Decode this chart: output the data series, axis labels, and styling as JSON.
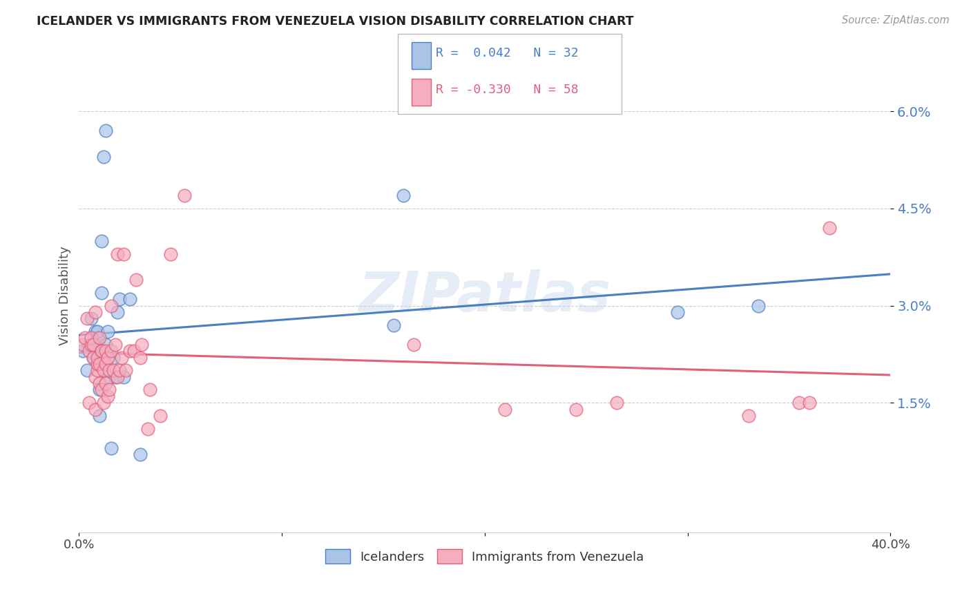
{
  "title": "ICELANDER VS IMMIGRANTS FROM VENEZUELA VISION DISABILITY CORRELATION CHART",
  "source": "Source: ZipAtlas.com",
  "ylabel": "Vision Disability",
  "yticks": [
    0.015,
    0.03,
    0.045,
    0.06
  ],
  "ytick_labels": [
    "1.5%",
    "3.0%",
    "4.5%",
    "6.0%"
  ],
  "xlim": [
    0.0,
    0.4
  ],
  "ylim": [
    -0.005,
    0.068
  ],
  "watermark": "ZIPatlas",
  "legend_r1": "R =  0.042",
  "legend_n1": "N = 32",
  "legend_r2": "R = -0.330",
  "legend_n2": "N = 58",
  "color_blue": "#aac4e8",
  "color_pink": "#f5adc0",
  "line_color_blue": "#4a7fc1",
  "line_color_pink": "#e0607a",
  "icelanders_x": [
    0.002,
    0.004,
    0.005,
    0.006,
    0.007,
    0.007,
    0.008,
    0.008,
    0.009,
    0.009,
    0.01,
    0.01,
    0.01,
    0.011,
    0.011,
    0.012,
    0.013,
    0.013,
    0.014,
    0.015,
    0.016,
    0.017,
    0.018,
    0.019,
    0.02,
    0.022,
    0.025,
    0.03,
    0.155,
    0.16,
    0.295,
    0.335
  ],
  "icelanders_y": [
    0.023,
    0.02,
    0.024,
    0.028,
    0.022,
    0.024,
    0.026,
    0.024,
    0.025,
    0.026,
    0.013,
    0.017,
    0.023,
    0.032,
    0.04,
    0.053,
    0.057,
    0.024,
    0.026,
    0.019,
    0.008,
    0.022,
    0.019,
    0.029,
    0.031,
    0.019,
    0.031,
    0.007,
    0.027,
    0.047,
    0.029,
    0.03
  ],
  "venezuela_x": [
    0.002,
    0.003,
    0.004,
    0.005,
    0.005,
    0.006,
    0.006,
    0.007,
    0.007,
    0.008,
    0.008,
    0.008,
    0.009,
    0.009,
    0.009,
    0.01,
    0.01,
    0.01,
    0.011,
    0.011,
    0.011,
    0.012,
    0.012,
    0.013,
    0.013,
    0.013,
    0.014,
    0.014,
    0.015,
    0.015,
    0.016,
    0.016,
    0.017,
    0.018,
    0.019,
    0.019,
    0.02,
    0.021,
    0.022,
    0.023,
    0.025,
    0.027,
    0.028,
    0.03,
    0.031,
    0.034,
    0.035,
    0.04,
    0.045,
    0.052,
    0.165,
    0.21,
    0.245,
    0.265,
    0.33,
    0.355,
    0.36,
    0.37
  ],
  "venezuela_y": [
    0.024,
    0.025,
    0.028,
    0.015,
    0.023,
    0.024,
    0.025,
    0.022,
    0.024,
    0.014,
    0.019,
    0.029,
    0.02,
    0.021,
    0.022,
    0.025,
    0.018,
    0.021,
    0.023,
    0.017,
    0.023,
    0.015,
    0.02,
    0.018,
    0.021,
    0.023,
    0.016,
    0.022,
    0.017,
    0.02,
    0.023,
    0.03,
    0.02,
    0.024,
    0.019,
    0.038,
    0.02,
    0.022,
    0.038,
    0.02,
    0.023,
    0.023,
    0.034,
    0.022,
    0.024,
    0.011,
    0.017,
    0.013,
    0.038,
    0.047,
    0.024,
    0.014,
    0.014,
    0.015,
    0.013,
    0.015,
    0.015,
    0.042
  ]
}
